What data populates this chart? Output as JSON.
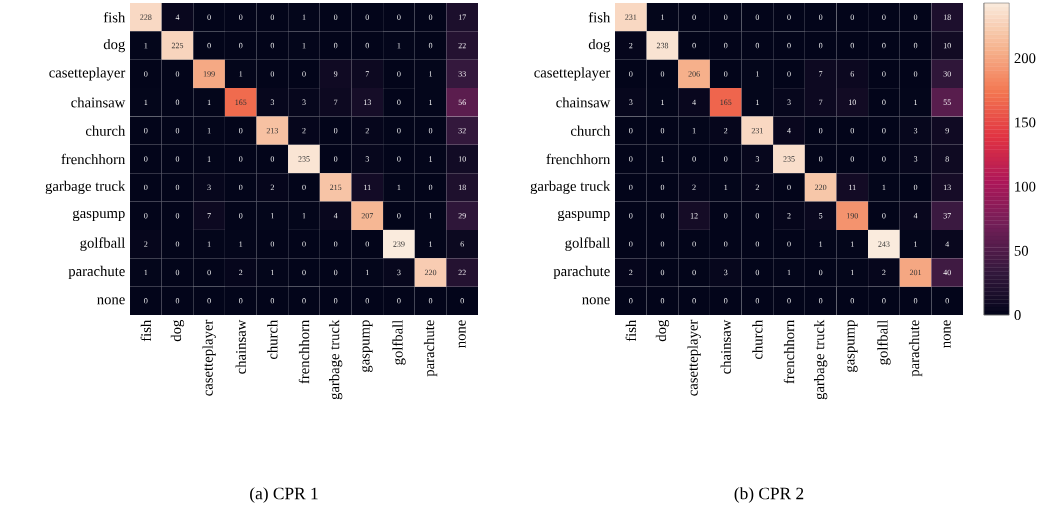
{
  "chart_data": [
    {
      "type": "heatmap",
      "title": "(a) CPR 1",
      "data_labels": true,
      "categories": [
        "fish",
        "dog",
        "casetteplayer",
        "chainsaw",
        "church",
        "frenchhorn",
        "garbage truck",
        "gaspump",
        "golfball",
        "parachute",
        "none"
      ],
      "y_categories": [
        "fish",
        "dog",
        "casetteplayer",
        "chainsaw",
        "church",
        "frenchhorn",
        "garbage truck",
        "gaspump",
        "golfball",
        "parachute",
        "none"
      ],
      "cells": [
        [
          228,
          4,
          0,
          0,
          0,
          1,
          0,
          0,
          0,
          0,
          17
        ],
        [
          1,
          225,
          0,
          0,
          0,
          1,
          0,
          0,
          1,
          0,
          22
        ],
        [
          0,
          0,
          199,
          1,
          0,
          0,
          9,
          7,
          0,
          1,
          33
        ],
        [
          1,
          0,
          1,
          165,
          3,
          3,
          7,
          13,
          0,
          1,
          56
        ],
        [
          0,
          0,
          1,
          0,
          213,
          2,
          0,
          2,
          0,
          0,
          32
        ],
        [
          0,
          0,
          1,
          0,
          0,
          235,
          0,
          3,
          0,
          1,
          10
        ],
        [
          0,
          0,
          3,
          0,
          2,
          0,
          215,
          11,
          1,
          0,
          18
        ],
        [
          0,
          0,
          7,
          0,
          1,
          1,
          4,
          207,
          0,
          1,
          29
        ],
        [
          2,
          0,
          1,
          1,
          0,
          0,
          0,
          0,
          239,
          1,
          6
        ],
        [
          1,
          0,
          0,
          2,
          1,
          0,
          0,
          1,
          3,
          220,
          22
        ],
        [
          0,
          0,
          0,
          0,
          0,
          0,
          0,
          0,
          0,
          0,
          0
        ]
      ]
    },
    {
      "type": "heatmap",
      "title": "(b) CPR 2",
      "data_labels": true,
      "clim": [
        0,
        243
      ],
      "cticks": [
        0,
        50,
        100,
        150,
        200
      ],
      "categories": [
        "fish",
        "dog",
        "casetteplayer",
        "chainsaw",
        "church",
        "frenchhorn",
        "garbage truck",
        "gaspump",
        "golfball",
        "parachute",
        "none"
      ],
      "y_categories": [
        "fish",
        "dog",
        "casetteplayer",
        "chainsaw",
        "church",
        "frenchhorn",
        "garbage truck",
        "gaspump",
        "golfball",
        "parachute",
        "none"
      ],
      "cells": [
        [
          231,
          1,
          0,
          0,
          0,
          0,
          0,
          0,
          0,
          0,
          18
        ],
        [
          2,
          238,
          0,
          0,
          0,
          0,
          0,
          0,
          0,
          0,
          10
        ],
        [
          0,
          0,
          206,
          0,
          1,
          0,
          7,
          6,
          0,
          0,
          30
        ],
        [
          3,
          1,
          4,
          165,
          1,
          3,
          7,
          10,
          0,
          1,
          55
        ],
        [
          0,
          0,
          1,
          2,
          231,
          4,
          0,
          0,
          0,
          3,
          9
        ],
        [
          0,
          1,
          0,
          0,
          3,
          235,
          0,
          0,
          0,
          3,
          8
        ],
        [
          0,
          0,
          2,
          1,
          2,
          0,
          220,
          11,
          1,
          0,
          13
        ],
        [
          0,
          0,
          12,
          0,
          0,
          2,
          5,
          190,
          0,
          4,
          37
        ],
        [
          0,
          0,
          0,
          0,
          0,
          0,
          1,
          1,
          243,
          1,
          4
        ],
        [
          2,
          0,
          0,
          3,
          0,
          1,
          0,
          1,
          2,
          201,
          40
        ],
        [
          0,
          0,
          0,
          0,
          0,
          0,
          0,
          0,
          0,
          0,
          0
        ]
      ]
    }
  ]
}
